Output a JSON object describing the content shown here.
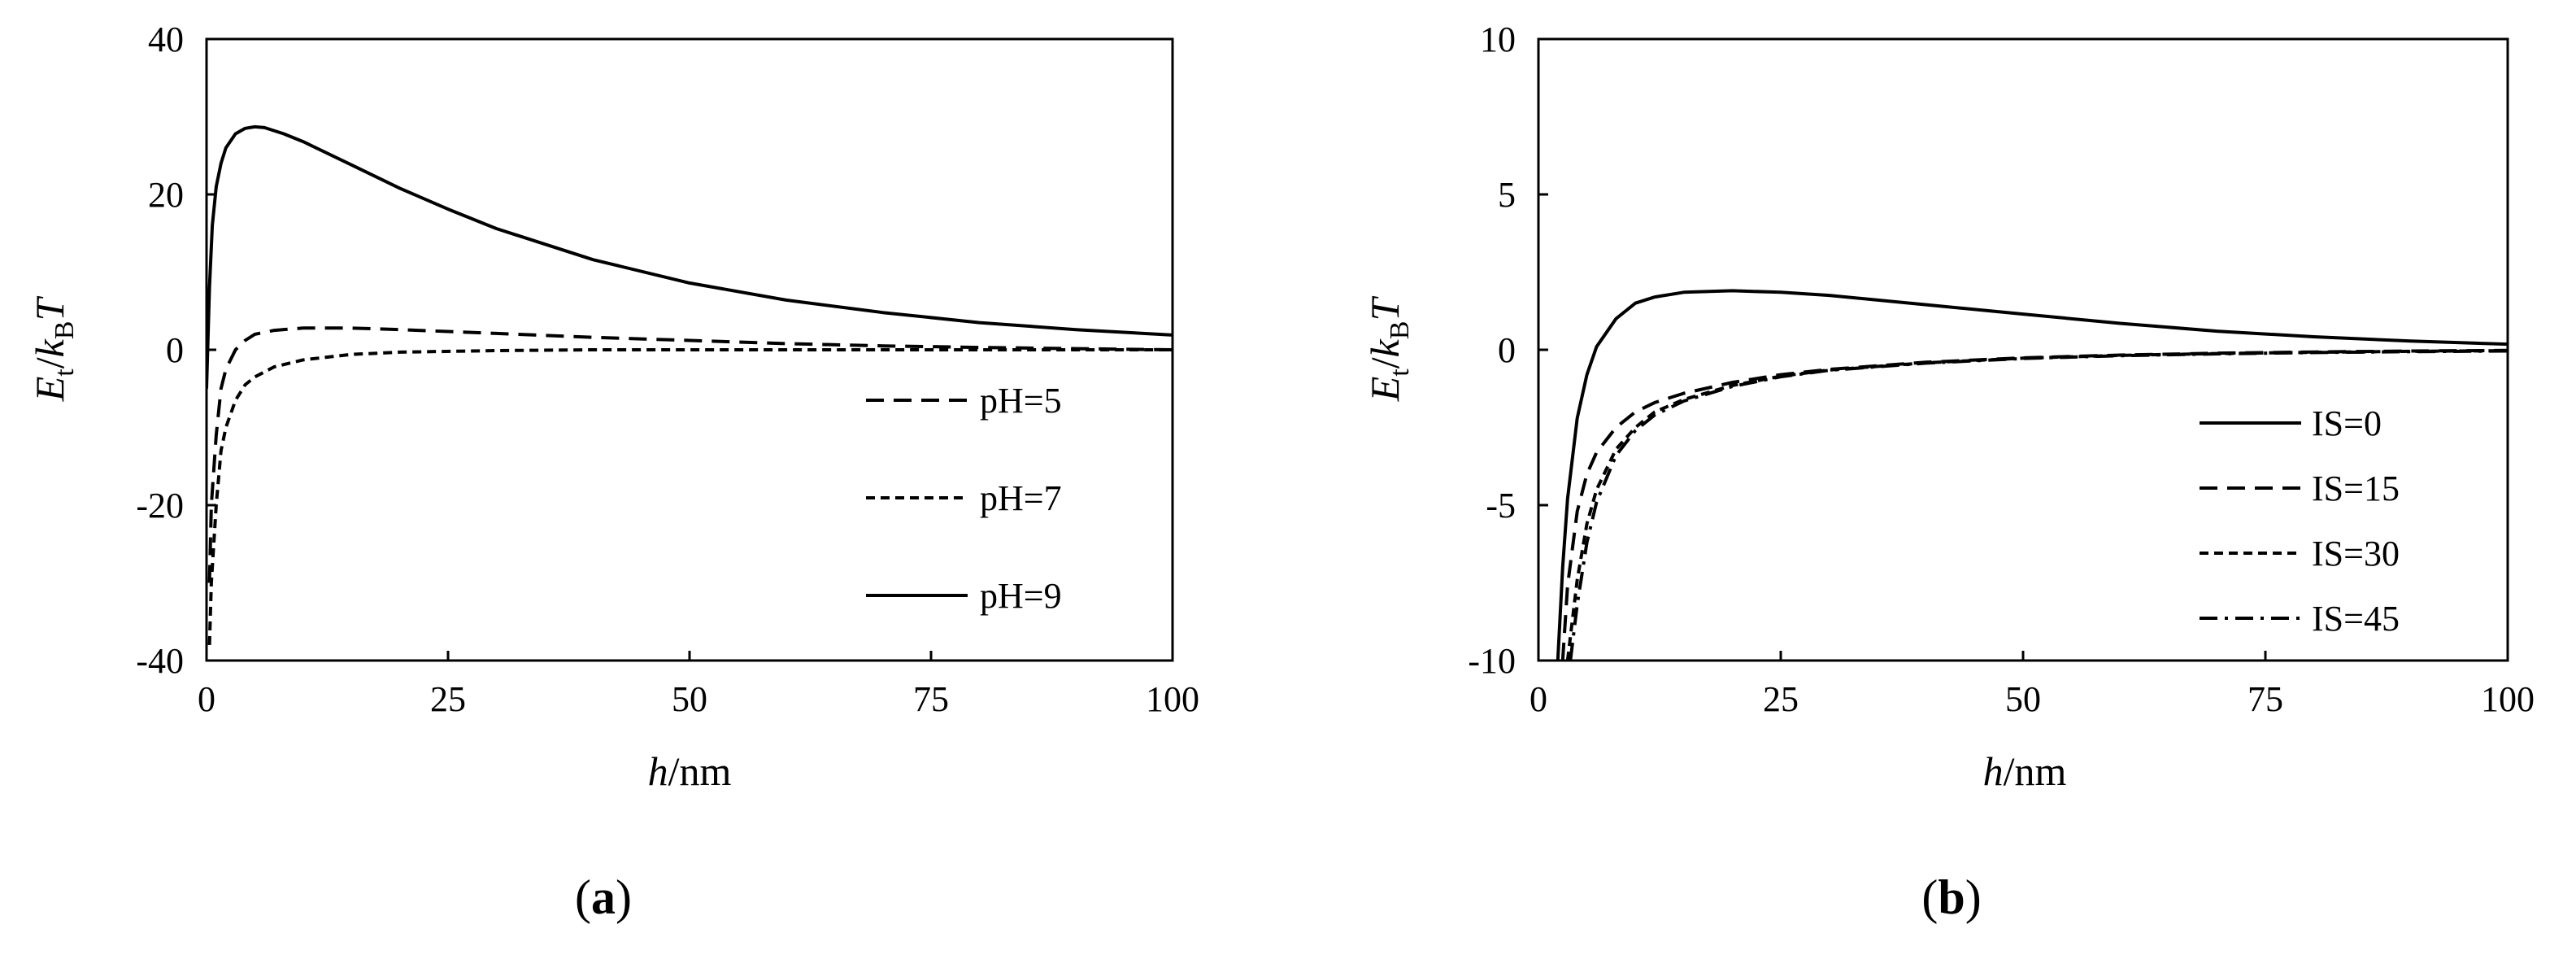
{
  "chart_data": [
    {
      "type": "line",
      "panel_label": "a",
      "xlabel_italic": "h",
      "xlabel_rest": "/nm",
      "ylabel_parts": {
        "E": "E",
        "t": "t",
        "slash": "/",
        "k": "k",
        "B": "B",
        "T": "T"
      },
      "xlim": [
        0,
        100
      ],
      "ylim": [
        -40,
        40
      ],
      "xticks": [
        0,
        25,
        50,
        75,
        100
      ],
      "yticks": [
        -40,
        -20,
        0,
        20,
        40
      ],
      "grid": false,
      "legend_position": "right",
      "series": [
        {
          "name": "pH=5",
          "style": "dashed",
          "x": [
            0.3,
            0.5,
            1,
            1.5,
            2,
            3,
            4,
            5,
            7,
            10,
            15,
            20,
            30,
            40,
            50,
            60,
            70,
            80,
            90,
            100
          ],
          "y": [
            -30,
            -20,
            -11,
            -5,
            -2.5,
            0,
            1.2,
            2,
            2.5,
            2.8,
            2.8,
            2.6,
            2.1,
            1.6,
            1.2,
            0.8,
            0.5,
            0.3,
            0.15,
            0
          ]
        },
        {
          "name": "pH=7",
          "style": "short-dashed",
          "x": [
            0.3,
            0.5,
            1,
            1.5,
            2,
            3,
            4,
            5,
            7,
            10,
            15,
            20,
            30,
            40,
            50,
            60,
            70,
            80,
            90,
            100
          ],
          "y": [
            -38,
            -30,
            -20,
            -13,
            -10,
            -6.5,
            -4.5,
            -3.5,
            -2.2,
            -1.3,
            -0.6,
            -0.3,
            -0.1,
            0,
            0,
            0,
            0,
            0,
            0,
            0
          ]
        },
        {
          "name": "pH=9",
          "style": "solid",
          "x": [
            0,
            0.3,
            0.6,
            1,
            1.5,
            2,
            3,
            4,
            5,
            6,
            8,
            10,
            15,
            20,
            25,
            30,
            40,
            50,
            60,
            70,
            80,
            90,
            100
          ],
          "y": [
            -5,
            8,
            16,
            21,
            24,
            26,
            27.8,
            28.5,
            28.7,
            28.6,
            27.8,
            26.8,
            23.8,
            20.8,
            18.1,
            15.6,
            11.6,
            8.6,
            6.4,
            4.8,
            3.5,
            2.6,
            1.9
          ]
        }
      ]
    },
    {
      "type": "line",
      "panel_label": "b",
      "xlabel_italic": "h",
      "xlabel_rest": "/nm",
      "ylabel_parts": {
        "E": "E",
        "t": "t",
        "slash": "/",
        "k": "k",
        "B": "B",
        "T": "T"
      },
      "xlim": [
        0,
        100
      ],
      "ylim": [
        -10,
        10
      ],
      "xticks": [
        0,
        25,
        50,
        75,
        100
      ],
      "yticks": [
        -10,
        -5,
        0,
        5,
        10
      ],
      "grid": false,
      "legend_position": "bottom-right",
      "series": [
        {
          "name": "IS=0",
          "style": "solid",
          "x": [
            2,
            2.5,
            3,
            4,
            5,
            6,
            8,
            10,
            12,
            15,
            20,
            25,
            30,
            40,
            50,
            60,
            70,
            80,
            90,
            100
          ],
          "y": [
            -10,
            -7,
            -4.8,
            -2.2,
            -0.8,
            0.1,
            1.0,
            1.5,
            1.7,
            1.85,
            1.9,
            1.85,
            1.75,
            1.45,
            1.15,
            0.85,
            0.6,
            0.42,
            0.28,
            0.18
          ]
        },
        {
          "name": "IS=15",
          "style": "dashed",
          "x": [
            2.5,
            3,
            4,
            5,
            6,
            8,
            10,
            12,
            15,
            20,
            25,
            30,
            40,
            50,
            60,
            70,
            80,
            90,
            100
          ],
          "y": [
            -10,
            -7.6,
            -5.2,
            -4.0,
            -3.3,
            -2.5,
            -2.0,
            -1.7,
            -1.4,
            -1.05,
            -0.8,
            -0.63,
            -0.4,
            -0.26,
            -0.17,
            -0.11,
            -0.07,
            -0.04,
            -0.02
          ]
        },
        {
          "name": "IS=30",
          "style": "short-dashed",
          "x": [
            3,
            4,
            5,
            6,
            8,
            10,
            12,
            15,
            20,
            25,
            30,
            40,
            50,
            60,
            70,
            80,
            90,
            100
          ],
          "y": [
            -10,
            -7.4,
            -5.6,
            -4.5,
            -3.2,
            -2.5,
            -2.0,
            -1.6,
            -1.15,
            -0.85,
            -0.65,
            -0.42,
            -0.27,
            -0.18,
            -0.12,
            -0.08,
            -0.05,
            -0.03
          ]
        },
        {
          "name": "IS=45",
          "style": "dash-dot",
          "x": [
            3.3,
            4,
            5,
            6,
            8,
            10,
            12,
            15,
            20,
            25,
            30,
            40,
            50,
            60,
            70,
            80,
            90,
            100
          ],
          "y": [
            -10,
            -8.2,
            -6.2,
            -4.9,
            -3.4,
            -2.6,
            -2.1,
            -1.65,
            -1.18,
            -0.87,
            -0.66,
            -0.43,
            -0.28,
            -0.19,
            -0.13,
            -0.09,
            -0.06,
            -0.04
          ]
        }
      ]
    }
  ]
}
